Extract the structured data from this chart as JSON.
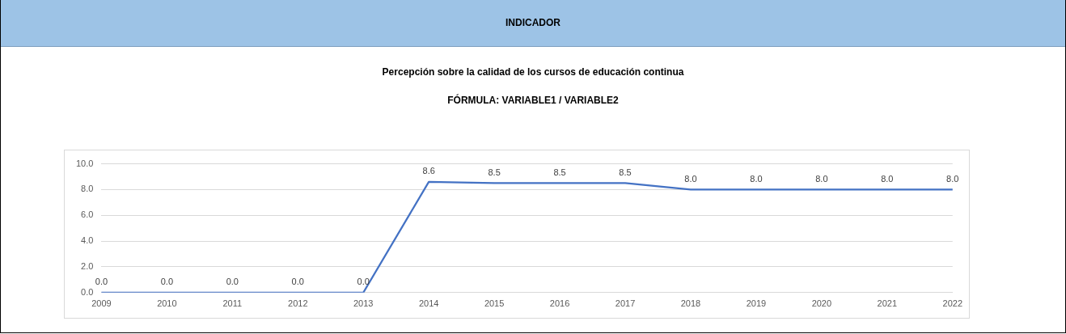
{
  "chart_data": {
    "type": "line",
    "title": "Percepción sobre la calidad de los cursos de educación continua",
    "subtitle": "FÓRMULA: VARIABLE1 / VARIABLE2",
    "annotations": [
      "INDICADOR"
    ],
    "categories": [
      "2009",
      "2010",
      "2011",
      "2012",
      "2013",
      "2014",
      "2015",
      "2016",
      "2017",
      "2018",
      "2019",
      "2020",
      "2021",
      "2022"
    ],
    "series": [
      {
        "color": "#4472c4",
        "values": [
          0,
          0,
          0,
          0,
          0,
          8.6,
          8.5,
          8.5,
          8.5,
          8.0,
          8.0,
          8.0,
          8.0,
          8.0
        ],
        "value_labels": [
          "0.0",
          "0.0",
          "0.0",
          "0.0",
          "0.0",
          "8.6",
          "8.5",
          "8.5",
          "8.5",
          "8.0",
          "8.0",
          "8.0",
          "8.0",
          "8.0"
        ]
      }
    ],
    "ylim": [
      0,
      10
    ],
    "yticks": [
      {
        "value": 0,
        "label": "0.0"
      },
      {
        "value": 2,
        "label": "2.0"
      },
      {
        "value": 4,
        "label": "4.0"
      },
      {
        "value": 6,
        "label": "6.0"
      },
      {
        "value": 8,
        "label": "8.0"
      },
      {
        "value": 10,
        "label": "10.0"
      }
    ],
    "grid": "y",
    "legend": false,
    "marker": "none",
    "line_style": "solid"
  }
}
